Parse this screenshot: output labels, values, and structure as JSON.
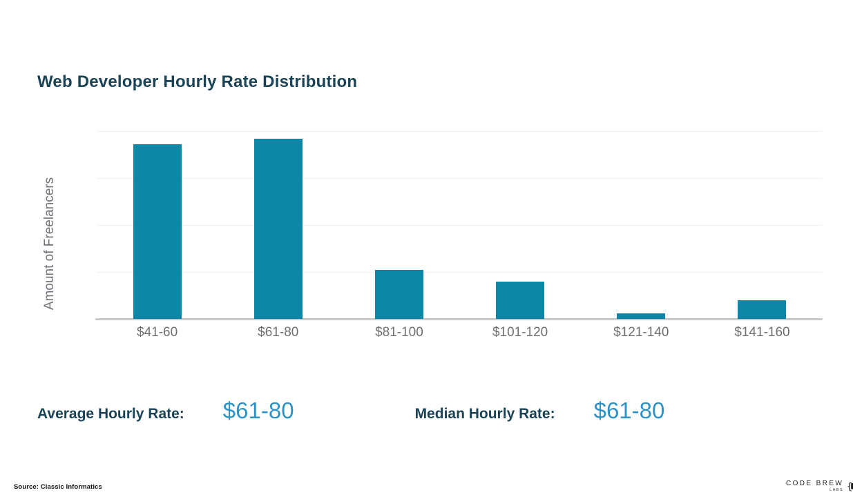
{
  "chart_data": {
    "type": "bar",
    "title": "Web Developer Hourly Rate Distribution",
    "xlabel": "",
    "ylabel": "Amount of Freelancers",
    "categories": [
      "$41-60",
      "$61-80",
      "$81-100",
      "$101-120",
      "$121-140",
      "$141-160"
    ],
    "values": [
      93,
      96,
      26,
      20,
      3,
      10
    ],
    "value_note": "y-axis shows no numeric ticks; values are estimated percent of axis maximum",
    "ylim": [
      0,
      100
    ],
    "grid": true,
    "gridline_positions_percent": [
      100,
      75,
      50,
      25
    ],
    "legend": false,
    "bar_color": "#0e86a8"
  },
  "stats": {
    "average_label": "Average Hourly Rate:",
    "average_value": "$61-80",
    "median_label": "Median Hourly Rate:",
    "median_value": "$61-80"
  },
  "footer": {
    "source": "Source: Classic Informatics",
    "logo_name": "CODE BREW",
    "logo_sub": "LABS"
  },
  "colors": {
    "heading_text": "#1a4456",
    "bar": "#0e86a8",
    "stat_value_text": "#2e93c4",
    "axis_tick_text": "#6f6f6f",
    "y_label_text": "#71717a",
    "gridline": "#efefef",
    "axis_line": "#c9c9c9",
    "background": "#ffffff"
  }
}
